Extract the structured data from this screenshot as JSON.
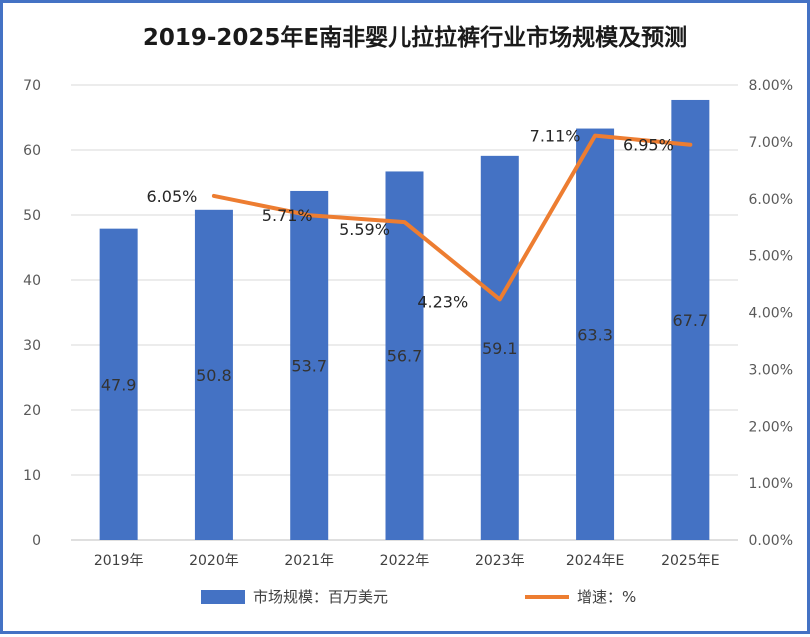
{
  "chart_data": {
    "type": "bar",
    "title": "2019-2025年E南非婴儿拉拉裤行业市场规模及预测",
    "categories": [
      "2019年",
      "2020年",
      "2021年",
      "2022年",
      "2023年",
      "2024年E",
      "2025年E"
    ],
    "series": [
      {
        "name": "市场规模：百万美元",
        "type": "bar",
        "axis": "left",
        "values": [
          47.9,
          50.8,
          53.7,
          56.7,
          59.1,
          63.3,
          67.7
        ],
        "labels": [
          "47.9",
          "50.8",
          "53.7",
          "56.7",
          "59.1",
          "63.3",
          "67.7"
        ],
        "color": "#4472c4"
      },
      {
        "name": "增速：%",
        "type": "line",
        "axis": "right",
        "values": [
          null,
          6.05,
          5.71,
          5.59,
          4.23,
          7.11,
          6.95
        ],
        "labels": [
          "",
          "6.05%",
          "5.71%",
          "5.59%",
          "4.23%",
          "7.11%",
          "6.95%"
        ],
        "color": "#ed7d31"
      }
    ],
    "y_left": {
      "min": 0,
      "max": 70,
      "step": 10,
      "ticks": [
        "0",
        "10",
        "20",
        "30",
        "40",
        "50",
        "60",
        "70"
      ]
    },
    "y_right": {
      "min": 0,
      "max": 8,
      "step": 1,
      "ticks": [
        "0.00%",
        "1.00%",
        "2.00%",
        "3.00%",
        "4.00%",
        "5.00%",
        "6.00%",
        "7.00%",
        "8.00%"
      ]
    },
    "grid": true,
    "legend_position": "bottom"
  }
}
